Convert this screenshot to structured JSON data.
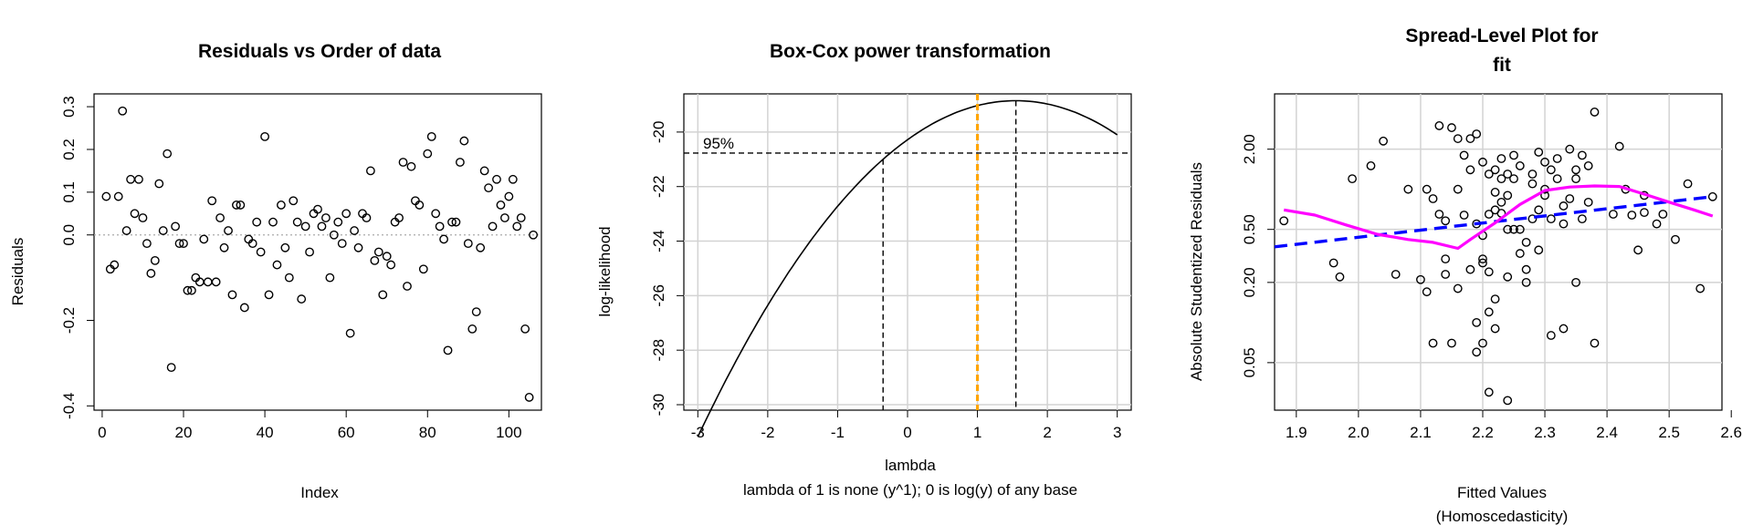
{
  "chart_data": [
    {
      "type": "scatter",
      "title": "Residuals vs Order of data",
      "xlabel": "Index",
      "ylabel": "Residuals",
      "xlim": [
        -2,
        108
      ],
      "ylim": [
        -0.41,
        0.33
      ],
      "xticks": [
        "0",
        "20",
        "40",
        "60",
        "80",
        "100"
      ],
      "yticks": [
        "-0.4",
        "-0.2",
        "0.0",
        "0.1",
        "0.2",
        "0.3"
      ],
      "reference_line": {
        "y": 0,
        "style": "dotted",
        "color": "#aaaaaa"
      },
      "grid": false,
      "points": [
        [
          1,
          0.09
        ],
        [
          2,
          -0.08
        ],
        [
          3,
          -0.07
        ],
        [
          4,
          0.09
        ],
        [
          5,
          0.29
        ],
        [
          6,
          0.01
        ],
        [
          7,
          0.13
        ],
        [
          8,
          0.05
        ],
        [
          9,
          0.13
        ],
        [
          10,
          0.04
        ],
        [
          11,
          -0.02
        ],
        [
          12,
          -0.09
        ],
        [
          13,
          -0.06
        ],
        [
          14,
          0.12
        ],
        [
          15,
          0.01
        ],
        [
          16,
          0.19
        ],
        [
          17,
          -0.31
        ],
        [
          18,
          0.02
        ],
        [
          19,
          -0.02
        ],
        [
          20,
          -0.02
        ],
        [
          21,
          -0.13
        ],
        [
          22,
          -0.13
        ],
        [
          23,
          -0.1
        ],
        [
          24,
          -0.11
        ],
        [
          25,
          -0.01
        ],
        [
          26,
          -0.11
        ],
        [
          27,
          0.08
        ],
        [
          28,
          -0.11
        ],
        [
          29,
          0.04
        ],
        [
          30,
          -0.03
        ],
        [
          31,
          0.01
        ],
        [
          32,
          -0.14
        ],
        [
          33,
          0.07
        ],
        [
          34,
          0.07
        ],
        [
          35,
          -0.17
        ],
        [
          36,
          -0.01
        ],
        [
          37,
          -0.02
        ],
        [
          38,
          0.03
        ],
        [
          39,
          -0.04
        ],
        [
          40,
          0.23
        ],
        [
          41,
          -0.14
        ],
        [
          42,
          0.03
        ],
        [
          43,
          -0.07
        ],
        [
          44,
          0.07
        ],
        [
          45,
          -0.03
        ],
        [
          46,
          -0.1
        ],
        [
          47,
          0.08
        ],
        [
          48,
          0.03
        ],
        [
          49,
          -0.15
        ],
        [
          50,
          0.02
        ],
        [
          51,
          -0.04
        ],
        [
          52,
          0.05
        ],
        [
          53,
          0.06
        ],
        [
          54,
          0.02
        ],
        [
          55,
          0.04
        ],
        [
          56,
          -0.1
        ],
        [
          57,
          0.0
        ],
        [
          58,
          0.03
        ],
        [
          59,
          -0.02
        ],
        [
          60,
          0.05
        ],
        [
          61,
          -0.23
        ],
        [
          62,
          0.01
        ],
        [
          63,
          -0.03
        ],
        [
          64,
          0.05
        ],
        [
          65,
          0.04
        ],
        [
          66,
          0.15
        ],
        [
          67,
          -0.06
        ],
        [
          68,
          -0.04
        ],
        [
          69,
          -0.14
        ],
        [
          70,
          -0.05
        ],
        [
          71,
          -0.07
        ],
        [
          72,
          0.03
        ],
        [
          73,
          0.04
        ],
        [
          74,
          0.17
        ],
        [
          75,
          -0.12
        ],
        [
          76,
          0.16
        ],
        [
          77,
          0.08
        ],
        [
          78,
          0.07
        ],
        [
          79,
          -0.08
        ],
        [
          80,
          0.19
        ],
        [
          81,
          0.23
        ],
        [
          82,
          0.05
        ],
        [
          83,
          0.02
        ],
        [
          84,
          -0.01
        ],
        [
          85,
          -0.27
        ],
        [
          86,
          0.03
        ],
        [
          87,
          0.03
        ],
        [
          88,
          0.17
        ],
        [
          89,
          0.22
        ],
        [
          90,
          -0.02
        ],
        [
          91,
          -0.22
        ],
        [
          92,
          -0.18
        ],
        [
          93,
          -0.03
        ],
        [
          94,
          0.15
        ],
        [
          95,
          0.11
        ],
        [
          96,
          0.02
        ],
        [
          97,
          0.13
        ],
        [
          98,
          0.07
        ],
        [
          99,
          0.04
        ],
        [
          100,
          0.09
        ],
        [
          101,
          0.13
        ],
        [
          102,
          0.02
        ],
        [
          103,
          0.04
        ],
        [
          104,
          -0.22
        ],
        [
          105,
          -0.38
        ],
        [
          106,
          -0.0
        ]
      ]
    },
    {
      "type": "line",
      "title": "Box-Cox power transformation",
      "xlabel": "lambda",
      "ylabel": "log-likelihood",
      "subtitle": "lambda of 1 is none (y^1); 0 is log(y) of any base",
      "xlim": [
        -3.2,
        3.2
      ],
      "ylim": [
        -30.2,
        -18.6
      ],
      "xticks": [
        "-3",
        "-2",
        "-1",
        "0",
        "1",
        "2",
        "3"
      ],
      "yticks": [
        "-30",
        "-28",
        "-26",
        "-24",
        "-22",
        "-20"
      ],
      "grid": true,
      "curve": {
        "lambda_max": 1.55,
        "loglik_max": -18.85,
        "curvature": 0.5955,
        "x_from": -3,
        "x_to": 3
      },
      "ci_level_text": "95%",
      "ci_loglik": -20.77,
      "ci_bounds": [
        -0.35,
        1.55
      ],
      "reference_lambda": {
        "value": 1,
        "color": "#ffa500"
      }
    },
    {
      "type": "scatter",
      "title_lines": [
        "Spread-Level Plot for",
        "fit"
      ],
      "xlabel_lines": [
        "Fitted Values",
        "(Homoscedasticity)"
      ],
      "ylabel": "Absolute Studentized Residuals",
      "log_y": true,
      "xlim": [
        1.865,
        2.585
      ],
      "ylim": [
        0.022,
        5.2
      ],
      "xticks": [
        "1.9",
        "2.0",
        "2.1",
        "2.2",
        "2.3",
        "2.4",
        "2.5",
        "2.6"
      ],
      "yticks": [
        "0.05",
        "0.20",
        "0.50",
        "2.00"
      ],
      "grid": true,
      "points": [
        [
          1.88,
          0.58
        ],
        [
          1.96,
          0.28
        ],
        [
          1.97,
          0.22
        ],
        [
          1.99,
          1.2
        ],
        [
          2.02,
          1.5
        ],
        [
          2.04,
          2.3
        ],
        [
          2.06,
          0.23
        ],
        [
          2.08,
          1.0
        ],
        [
          2.1,
          0.21
        ],
        [
          2.11,
          0.17
        ],
        [
          2.12,
          0.07
        ],
        [
          2.13,
          0.65
        ],
        [
          2.14,
          0.3
        ],
        [
          2.11,
          1.0
        ],
        [
          2.13,
          3.0
        ],
        [
          2.15,
          2.9
        ],
        [
          2.16,
          2.4
        ],
        [
          2.18,
          2.4
        ],
        [
          2.12,
          0.85
        ],
        [
          2.14,
          0.58
        ],
        [
          2.14,
          0.23
        ],
        [
          2.15,
          0.07
        ],
        [
          2.16,
          0.18
        ],
        [
          2.17,
          0.64
        ],
        [
          2.18,
          0.25
        ],
        [
          2.19,
          0.55
        ],
        [
          2.2,
          0.45
        ],
        [
          2.2,
          0.28
        ],
        [
          2.21,
          0.12
        ],
        [
          2.19,
          0.1
        ],
        [
          2.2,
          0.07
        ],
        [
          2.22,
          0.09
        ],
        [
          2.21,
          0.65
        ],
        [
          2.22,
          0.95
        ],
        [
          2.23,
          0.8
        ],
        [
          2.24,
          0.22
        ],
        [
          2.19,
          0.06
        ],
        [
          2.21,
          0.03
        ],
        [
          2.24,
          0.026
        ],
        [
          2.22,
          0.15
        ],
        [
          2.2,
          0.3
        ],
        [
          2.21,
          0.24
        ],
        [
          2.23,
          0.66
        ],
        [
          2.24,
          0.5
        ],
        [
          2.25,
          1.8
        ],
        [
          2.26,
          0.5
        ],
        [
          2.27,
          0.4
        ],
        [
          2.28,
          1.1
        ],
        [
          2.29,
          0.35
        ],
        [
          2.3,
          0.9
        ],
        [
          2.31,
          1.4
        ],
        [
          2.31,
          0.08
        ],
        [
          2.32,
          1.2
        ],
        [
          2.33,
          0.09
        ],
        [
          2.34,
          2.0
        ],
        [
          2.35,
          0.2
        ],
        [
          2.36,
          1.8
        ],
        [
          2.37,
          1.5
        ],
        [
          2.38,
          0.07
        ],
        [
          2.38,
          3.8
        ],
        [
          2.41,
          0.65
        ],
        [
          2.42,
          2.1
        ],
        [
          2.43,
          1.0
        ],
        [
          2.44,
          0.64
        ],
        [
          2.45,
          0.35
        ],
        [
          2.46,
          0.67
        ],
        [
          2.46,
          0.9
        ],
        [
          2.48,
          0.55
        ],
        [
          2.49,
          0.65
        ],
        [
          2.51,
          0.42
        ],
        [
          2.53,
          1.1
        ],
        [
          2.55,
          0.18
        ],
        [
          2.57,
          0.88
        ],
        [
          2.25,
          0.5
        ],
        [
          2.26,
          0.33
        ],
        [
          2.27,
          0.25
        ],
        [
          2.28,
          0.6
        ],
        [
          2.29,
          0.7
        ],
        [
          2.3,
          1.0
        ],
        [
          2.32,
          1.7
        ],
        [
          2.33,
          0.75
        ],
        [
          2.34,
          0.85
        ],
        [
          2.35,
          1.2
        ],
        [
          2.36,
          0.6
        ],
        [
          2.37,
          0.8
        ],
        [
          2.29,
          1.9
        ],
        [
          2.27,
          0.2
        ],
        [
          2.25,
          1.2
        ],
        [
          2.24,
          1.3
        ],
        [
          2.23,
          1.2
        ],
        [
          2.22,
          1.4
        ],
        [
          2.21,
          1.3
        ],
        [
          2.2,
          1.6
        ],
        [
          2.19,
          2.6
        ],
        [
          2.18,
          1.4
        ],
        [
          2.17,
          1.8
        ],
        [
          2.16,
          1.0
        ],
        [
          2.22,
          0.7
        ],
        [
          2.24,
          0.9
        ],
        [
          2.26,
          1.5
        ],
        [
          2.28,
          1.3
        ],
        [
          2.3,
          1.6
        ],
        [
          2.31,
          0.6
        ],
        [
          2.33,
          0.55
        ],
        [
          2.35,
          1.4
        ],
        [
          2.23,
          1.7
        ]
      ],
      "fit_line": {
        "color": "#0000ff",
        "style": "dashed",
        "points": [
          [
            1.86,
            0.37
          ],
          [
            2.57,
            0.88
          ]
        ]
      },
      "smooth_line": {
        "color": "#ff00ff",
        "points": [
          [
            1.88,
            0.7
          ],
          [
            1.93,
            0.64
          ],
          [
            1.98,
            0.54
          ],
          [
            2.03,
            0.46
          ],
          [
            2.08,
            0.42
          ],
          [
            2.12,
            0.4
          ],
          [
            2.16,
            0.36
          ],
          [
            2.18,
            0.42
          ],
          [
            2.22,
            0.56
          ],
          [
            2.26,
            0.77
          ],
          [
            2.3,
            0.98
          ],
          [
            2.34,
            1.04
          ],
          [
            2.38,
            1.06
          ],
          [
            2.42,
            1.05
          ],
          [
            2.46,
            0.92
          ],
          [
            2.5,
            0.8
          ],
          [
            2.54,
            0.7
          ],
          [
            2.57,
            0.63
          ]
        ]
      }
    }
  ]
}
